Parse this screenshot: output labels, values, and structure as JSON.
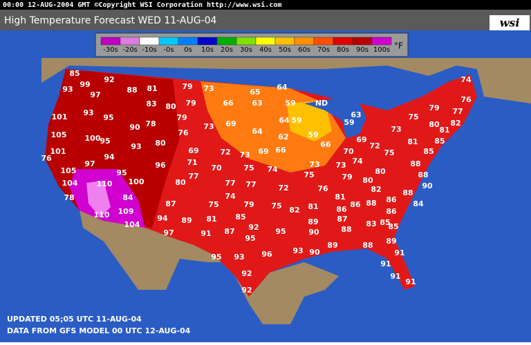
{
  "header": {
    "timestamp": "00:00 12-AUG-2004 GMT ©Copyright WSI Corporation  http://www.wsi.com",
    "title": "High Temperature Forecast  WED 11-AUG-04",
    "logo": "wsi"
  },
  "legend": {
    "unit": "°F",
    "entries": [
      {
        "label": "-30s",
        "color": "#c000c0"
      },
      {
        "label": "-20s",
        "color": "#e07ce0"
      },
      {
        "label": "-10s",
        "color": "#ffffff"
      },
      {
        "label": "-0s",
        "color": "#00c8ff"
      },
      {
        "label": "0s",
        "color": "#0080ff"
      },
      {
        "label": "10s",
        "color": "#0000c8"
      },
      {
        "label": "20s",
        "color": "#00b000"
      },
      {
        "label": "30s",
        "color": "#80e000"
      },
      {
        "label": "40s",
        "color": "#ffff00"
      },
      {
        "label": "50s",
        "color": "#ffc000"
      },
      {
        "label": "60s",
        "color": "#ff9000"
      },
      {
        "label": "70s",
        "color": "#ff5000"
      },
      {
        "label": "80s",
        "color": "#e00000"
      },
      {
        "label": "90s",
        "color": "#b80000"
      },
      {
        "label": "100s",
        "color": "#d000d0"
      }
    ]
  },
  "map": {
    "state_label": "ND",
    "temperatures": [
      85,
      93,
      99,
      97,
      92,
      88,
      81,
      79,
      73,
      65,
      64,
      74,
      101,
      93,
      95,
      83,
      80,
      79,
      66,
      63,
      59,
      76,
      79,
      77,
      105,
      90,
      78,
      79,
      73,
      69,
      64,
      64,
      59,
      59,
      63,
      59,
      75,
      80,
      82,
      81,
      100,
      95,
      93,
      80,
      76,
      62,
      73,
      69,
      72,
      66,
      81,
      85,
      85,
      101,
      76,
      97,
      94,
      69,
      72,
      73,
      69,
      66,
      70,
      75,
      96,
      71,
      70,
      75,
      74,
      73,
      73,
      74,
      88,
      88,
      105,
      95,
      104,
      110,
      100,
      80,
      77,
      77,
      77,
      72,
      75,
      76,
      79,
      80,
      80,
      82,
      88,
      90,
      78,
      84,
      87,
      74,
      79,
      75,
      75,
      82,
      81,
      81,
      86,
      86,
      88,
      86,
      86,
      84,
      110,
      109,
      104,
      94,
      89,
      81,
      85,
      89,
      87,
      83,
      85,
      85,
      97,
      91,
      87,
      92,
      95,
      90,
      88,
      89,
      95,
      89,
      88,
      91,
      95,
      93,
      96,
      93,
      90,
      91,
      92,
      91,
      91,
      92
    ]
  },
  "footer": {
    "updated": "UPDATED 05;05 UTC 11-AUG-04",
    "source": "DATA FROM GFS MODEL 00 UTC 12-AUG-04"
  }
}
